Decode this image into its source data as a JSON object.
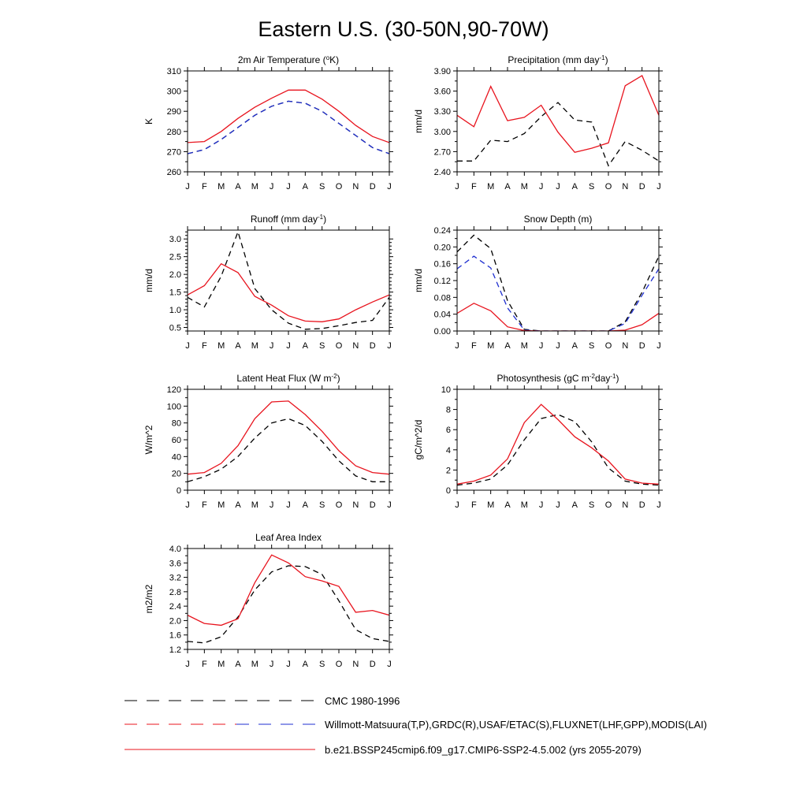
{
  "figure_title": "Eastern U.S. (30-50N,90-70W)",
  "months": [
    "J",
    "F",
    "M",
    "A",
    "M",
    "J",
    "J",
    "A",
    "S",
    "O",
    "N",
    "D",
    "J"
  ],
  "legend": [
    {
      "label": "CMC 1980-1996",
      "style": "dash-black"
    },
    {
      "label": "Willmott-Matsuura(T,P),GRDC(R),USAF/ETAC(S),FLUXNET(LHF,GPP),MODIS(LAI)",
      "style": "dash-red-blue"
    },
    {
      "label": "b.e21.BSSP245cmip6.f09_g17.CMIP6-SSP2-4.5.002 (yrs 2055-2079)",
      "style": "solid-red"
    }
  ],
  "chart_data": [
    {
      "type": "line",
      "title": "2m Air Temperature (°K)",
      "title_parts": [
        {
          "t": "2m Air Temperature ("
        },
        {
          "t": "o",
          "sup": true
        },
        {
          "t": "K)"
        }
      ],
      "ylabel": "K",
      "ylim": [
        260,
        310
      ],
      "yticks": [
        260,
        270,
        280,
        290,
        300,
        310
      ],
      "yminor": 2,
      "ydecimals": 0,
      "series": [
        {
          "name": "Willmott-Matsuura",
          "style": "dash-black",
          "values": [
            269,
            271,
            276,
            282,
            288,
            292.5,
            295,
            294,
            290,
            284,
            278,
            272,
            269
          ]
        },
        {
          "name": "Willmott-Matsuura",
          "style": "dash-blue",
          "values": [
            269,
            271,
            276,
            282,
            288,
            292.5,
            295,
            294,
            290,
            284,
            278,
            272,
            269
          ]
        },
        {
          "name": "b.e21.BSSP245cmip6",
          "style": "solid-red",
          "values": [
            274.5,
            275,
            280,
            286.5,
            292,
            296.5,
            300.5,
            300.5,
            296,
            290,
            283,
            277.5,
            274.5
          ]
        }
      ]
    },
    {
      "type": "line",
      "title": "Precipitation (mm day-1)",
      "title_parts": [
        {
          "t": "Precipitation (mm day"
        },
        {
          "t": "-1",
          "sup": true
        },
        {
          "t": ")"
        }
      ],
      "ylabel": "mm/d",
      "ylim": [
        2.4,
        3.9
      ],
      "yticks": [
        2.4,
        2.7,
        3.0,
        3.3,
        3.6,
        3.9
      ],
      "yminor": 2,
      "ydecimals": 2,
      "series": [
        {
          "name": "Willmott-Matsuura",
          "style": "dash-black",
          "values": [
            2.56,
            2.56,
            2.87,
            2.85,
            2.97,
            3.22,
            3.43,
            3.17,
            3.14,
            2.49,
            2.85,
            2.72,
            2.56
          ]
        },
        {
          "name": "b.e21.BSSP245cmip6",
          "style": "solid-red",
          "values": [
            3.24,
            3.07,
            3.67,
            3.16,
            3.21,
            3.39,
            2.99,
            2.69,
            2.75,
            2.83,
            3.68,
            3.83,
            3.24
          ]
        }
      ]
    },
    {
      "type": "line",
      "title": "Runoff (mm day-1)",
      "title_parts": [
        {
          "t": "Runoff (mm day"
        },
        {
          "t": "-1",
          "sup": true
        },
        {
          "t": ")"
        }
      ],
      "ylabel": "mm/d",
      "ylim": [
        0.4,
        3.25
      ],
      "yticks": [
        0.5,
        1.0,
        1.5,
        2.0,
        2.5,
        3.0
      ],
      "yminor": 5,
      "ydecimals": 1,
      "series": [
        {
          "name": "GRDC",
          "style": "dash-black",
          "values": [
            1.35,
            1.08,
            1.95,
            3.2,
            1.6,
            1.0,
            0.62,
            0.45,
            0.47,
            0.55,
            0.64,
            0.7,
            1.35
          ]
        },
        {
          "name": "b.e21.BSSP245cmip6",
          "style": "solid-red",
          "values": [
            1.42,
            1.68,
            2.3,
            2.05,
            1.38,
            1.13,
            0.83,
            0.68,
            0.66,
            0.74,
            1.0,
            1.22,
            1.42
          ]
        }
      ]
    },
    {
      "type": "line",
      "title": "Snow Depth (m)",
      "title_parts": [
        {
          "t": "Snow Depth (m)"
        }
      ],
      "ylabel": "mm/d",
      "ylim": [
        0,
        0.24
      ],
      "yticks": [
        0.0,
        0.04,
        0.08,
        0.12,
        0.16,
        0.2,
        0.24
      ],
      "yminor": 2,
      "ydecimals": 2,
      "series": [
        {
          "name": "CMC 1980-1996",
          "style": "dash-black",
          "values": [
            0.188,
            0.228,
            0.196,
            0.072,
            0.004,
            0.0,
            0.0,
            0.0,
            0.0,
            0.0,
            0.022,
            0.092,
            0.178
          ]
        },
        {
          "name": "USAF/ETAC",
          "style": "dash-blue",
          "values": [
            0.148,
            0.178,
            0.15,
            0.055,
            0.002,
            0.0,
            0.0,
            0.0,
            0.0,
            0.0,
            0.018,
            0.085,
            0.148
          ]
        },
        {
          "name": "b.e21.BSSP245cmip6",
          "style": "solid-red",
          "values": [
            0.042,
            0.066,
            0.048,
            0.01,
            0.001,
            0.0,
            0.0,
            0.0,
            0.0,
            0.0,
            0.002,
            0.015,
            0.042
          ]
        }
      ]
    },
    {
      "type": "line",
      "title": "Latent Heat Flux (W m-2)",
      "title_parts": [
        {
          "t": "Latent Heat Flux (W m"
        },
        {
          "t": "-2",
          "sup": true
        },
        {
          "t": ")"
        }
      ],
      "ylabel": "W/m^2",
      "ylim": [
        0,
        120
      ],
      "yticks": [
        0,
        20,
        40,
        60,
        80,
        100,
        120
      ],
      "yminor": 2,
      "ydecimals": 0,
      "series": [
        {
          "name": "FLUXNET",
          "style": "dash-black",
          "values": [
            10,
            16,
            25,
            40,
            62,
            80,
            85,
            77,
            58,
            35,
            17,
            10,
            10
          ]
        },
        {
          "name": "b.e21.BSSP245cmip6",
          "style": "solid-red",
          "values": [
            19,
            21,
            32,
            53,
            85,
            105,
            106,
            90,
            70,
            47,
            29,
            21,
            19
          ]
        }
      ]
    },
    {
      "type": "line",
      "title": "Photosynthesis (gC m-2day-1)",
      "title_parts": [
        {
          "t": "Photosynthesis (gC m"
        },
        {
          "t": "-2",
          "sup": true
        },
        {
          "t": "day"
        },
        {
          "t": "-1",
          "sup": true
        },
        {
          "t": ")"
        }
      ],
      "ylabel": "gC/m^2/d",
      "ylim": [
        0,
        10
      ],
      "yticks": [
        0,
        2,
        4,
        6,
        8,
        10
      ],
      "yminor": 2,
      "ydecimals": 0,
      "series": [
        {
          "name": "FLUXNET",
          "style": "dash-black",
          "values": [
            0.5,
            0.7,
            1.1,
            2.5,
            5.0,
            7.1,
            7.5,
            6.8,
            4.8,
            2.2,
            0.9,
            0.6,
            0.5
          ]
        },
        {
          "name": "b.e21.BSSP245cmip6",
          "style": "solid-red",
          "values": [
            0.6,
            0.9,
            1.5,
            3.1,
            6.7,
            8.5,
            7.0,
            5.3,
            4.2,
            2.9,
            1.1,
            0.7,
            0.6
          ]
        }
      ]
    },
    {
      "type": "line",
      "title": "Leaf Area Index",
      "title_parts": [
        {
          "t": "Leaf Area Index"
        }
      ],
      "ylabel": "m2/m2",
      "ylim": [
        1.2,
        4.0
      ],
      "yticks": [
        1.2,
        1.6,
        2.0,
        2.4,
        2.8,
        3.2,
        3.6,
        4.0
      ],
      "yminor": 2,
      "ydecimals": 1,
      "series": [
        {
          "name": "MODIS",
          "style": "dash-black",
          "values": [
            1.42,
            1.38,
            1.55,
            2.1,
            2.85,
            3.35,
            3.52,
            3.5,
            3.28,
            2.55,
            1.75,
            1.5,
            1.42
          ]
        },
        {
          "name": "b.e21.BSSP245cmip6",
          "style": "solid-red",
          "values": [
            2.15,
            1.92,
            1.87,
            2.05,
            3.05,
            3.82,
            3.6,
            3.22,
            3.1,
            2.95,
            2.23,
            2.28,
            2.15
          ]
        }
      ]
    }
  ]
}
